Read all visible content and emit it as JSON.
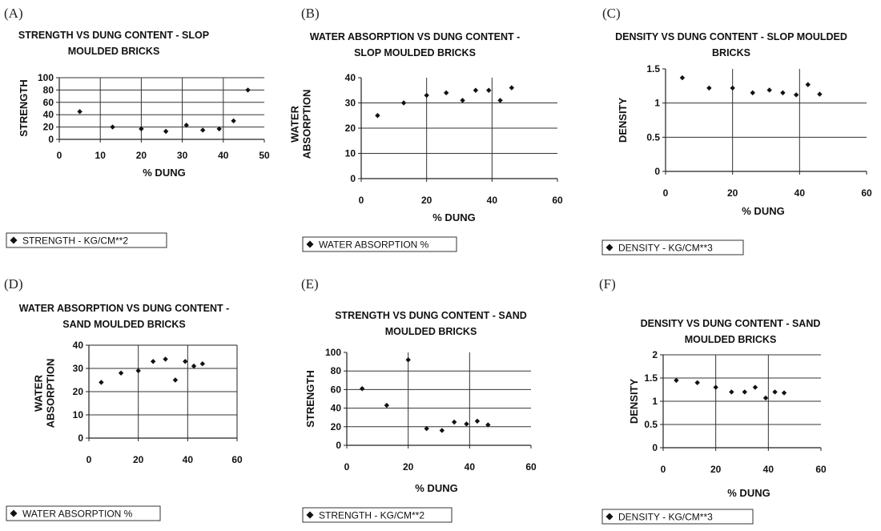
{
  "chart_data": [
    {
      "id": "A",
      "label": "(A)",
      "type": "scatter",
      "title_lines": [
        "STRENGTH VS DUNG CONTENT - SLOP",
        "MOULDED BRICKS"
      ],
      "xlabel": "% DUNG",
      "ylabel_lines": [
        "STRENGTH"
      ],
      "xlim": [
        0,
        50
      ],
      "ylim": [
        0,
        100
      ],
      "xticks": [
        0,
        10,
        20,
        30,
        40,
        50
      ],
      "yticks": [
        0,
        20,
        40,
        60,
        80,
        100
      ],
      "xtick_labels": [
        "0",
        "10",
        "20",
        "30",
        "40",
        "50"
      ],
      "ytick_labels": [
        "0",
        "20",
        "40",
        "60",
        "80",
        "100"
      ],
      "vgrid": [
        10,
        20,
        30,
        40
      ],
      "hgrid": [
        20,
        40,
        60,
        80,
        100
      ],
      "series": [
        {
          "name": "STRENGTH - KG/CM**2",
          "x": [
            5,
            13,
            20,
            26,
            31,
            35,
            39,
            42.5,
            46
          ],
          "y": [
            45,
            20,
            17,
            13,
            23,
            15,
            17,
            30,
            80
          ]
        }
      ],
      "legend": "STRENGTH - KG/CM**2"
    },
    {
      "id": "B",
      "label": "(B)",
      "type": "scatter",
      "title_lines": [
        "WATER ABSORPTION VS DUNG CONTENT -",
        "SLOP MOULDED BRICKS"
      ],
      "xlabel": "% DUNG",
      "ylabel_lines": [
        "WATER",
        "ABSORPTION"
      ],
      "xlim": [
        0,
        60
      ],
      "ylim": [
        0,
        40
      ],
      "xticks": [
        0,
        20,
        40,
        60
      ],
      "yticks": [
        0,
        10,
        20,
        30,
        40
      ],
      "xtick_labels": [
        "0",
        "20",
        "40",
        "60"
      ],
      "ytick_labels": [
        "0",
        "10",
        "20",
        "30",
        "40"
      ],
      "vgrid": [
        20,
        40
      ],
      "hgrid": [
        10,
        20,
        30
      ],
      "series": [
        {
          "name": "WATER ABSORPTION %",
          "x": [
            5,
            13,
            20,
            26,
            31,
            35,
            39,
            42.5,
            46
          ],
          "y": [
            25,
            30,
            33,
            34,
            31,
            35,
            35,
            31,
            36
          ]
        }
      ],
      "legend": "WATER ABSORPTION %"
    },
    {
      "id": "C",
      "label": "(C)",
      "type": "scatter",
      "title_lines": [
        "DENSITY VS DUNG CONTENT - SLOP MOULDED",
        "BRICKS"
      ],
      "xlabel": "% DUNG",
      "ylabel_lines": [
        "DENSITY"
      ],
      "xlim": [
        0,
        60
      ],
      "ylim": [
        0,
        1.5
      ],
      "xticks": [
        0,
        20,
        40,
        60
      ],
      "yticks": [
        0,
        0.5,
        1,
        1.5
      ],
      "xtick_labels": [
        "0",
        "20",
        "40",
        "60"
      ],
      "ytick_labels": [
        "0",
        "0.5",
        "1",
        "1.5"
      ],
      "vgrid": [
        20,
        40
      ],
      "hgrid": [
        0.5,
        1
      ],
      "series": [
        {
          "name": "DENSITY - KG/CM**3",
          "x": [
            5,
            13,
            20,
            26,
            31,
            35,
            39,
            42.5,
            46
          ],
          "y": [
            1.37,
            1.22,
            1.22,
            1.15,
            1.19,
            1.15,
            1.12,
            1.27,
            1.13
          ]
        }
      ],
      "legend": "DENSITY - KG/CM**3"
    },
    {
      "id": "D",
      "label": "(D)",
      "type": "scatter",
      "title_lines": [
        "WATER ABSORPTION VS DUNG CONTENT -",
        "SAND MOULDED BRICKS"
      ],
      "xlabel": "",
      "ylabel_lines": [
        "WATER",
        "ABSORPTION"
      ],
      "xlim": [
        0,
        60
      ],
      "ylim": [
        0,
        40
      ],
      "xticks": [
        0,
        20,
        40,
        60
      ],
      "yticks": [
        0,
        10,
        20,
        30,
        40
      ],
      "xtick_labels": [
        "0",
        "20",
        "40",
        "60"
      ],
      "ytick_labels": [
        "0",
        "10",
        "20",
        "30",
        "40"
      ],
      "vgrid": [
        20,
        40,
        60
      ],
      "hgrid": [
        10,
        20,
        30,
        40
      ],
      "series": [
        {
          "name": "WATER ABSORPTION %",
          "x": [
            5,
            13,
            20,
            26,
            31,
            35,
            39,
            42.5,
            46
          ],
          "y": [
            24,
            28,
            29,
            33,
            34,
            25,
            33,
            31,
            32
          ]
        }
      ],
      "legend": "WATER ABSORPTION %"
    },
    {
      "id": "E",
      "label": "(E)",
      "type": "scatter",
      "title_lines": [
        "STRENGTH VS DUNG CONTENT - SAND",
        "MOULDED BRICKS"
      ],
      "xlabel": "% DUNG",
      "ylabel_lines": [
        "STRENGTH"
      ],
      "xlim": [
        0,
        60
      ],
      "ylim": [
        0,
        100
      ],
      "xticks": [
        0,
        20,
        40,
        60
      ],
      "yticks": [
        0,
        20,
        40,
        60,
        80,
        100
      ],
      "xtick_labels": [
        "0",
        "20",
        "40",
        "60"
      ],
      "ytick_labels": [
        "0",
        "20",
        "40",
        "60",
        "80",
        "100"
      ],
      "vgrid": [
        20,
        40
      ],
      "hgrid": [
        20,
        40,
        60,
        80
      ],
      "series": [
        {
          "name": "STRENGTH - KG/CM**2",
          "x": [
            5,
            13,
            20,
            26,
            31,
            35,
            39,
            42.5,
            46
          ],
          "y": [
            61,
            43,
            92,
            18,
            16,
            25,
            23,
            26,
            22
          ]
        }
      ],
      "legend": "STRENGTH - KG/CM**2"
    },
    {
      "id": "F",
      "label": "(F)",
      "type": "scatter",
      "title_lines": [
        "DENSITY VS DUNG CONTENT - SAND",
        "MOULDED BRICKS"
      ],
      "xlabel": "% DUNG",
      "ylabel_lines": [
        "DENSITY"
      ],
      "xlim": [
        0,
        60
      ],
      "ylim": [
        0,
        2
      ],
      "xticks": [
        0,
        20,
        40,
        60
      ],
      "yticks": [
        0,
        0.5,
        1,
        1.5,
        2
      ],
      "xtick_labels": [
        "0",
        "20",
        "40",
        "60"
      ],
      "ytick_labels": [
        "0",
        "0.5",
        "1",
        "1.5",
        "2"
      ],
      "vgrid": [
        20,
        40
      ],
      "hgrid": [
        0.5,
        1,
        1.5,
        2
      ],
      "series": [
        {
          "name": "DENSITY - KG/CM**3",
          "x": [
            5,
            13,
            20,
            26,
            31,
            35,
            39,
            42.5,
            46
          ],
          "y": [
            1.45,
            1.4,
            1.3,
            1.2,
            1.2,
            1.3,
            1.07,
            1.2,
            1.18
          ]
        }
      ],
      "legend": "DENSITY - KG/CM**3"
    }
  ]
}
